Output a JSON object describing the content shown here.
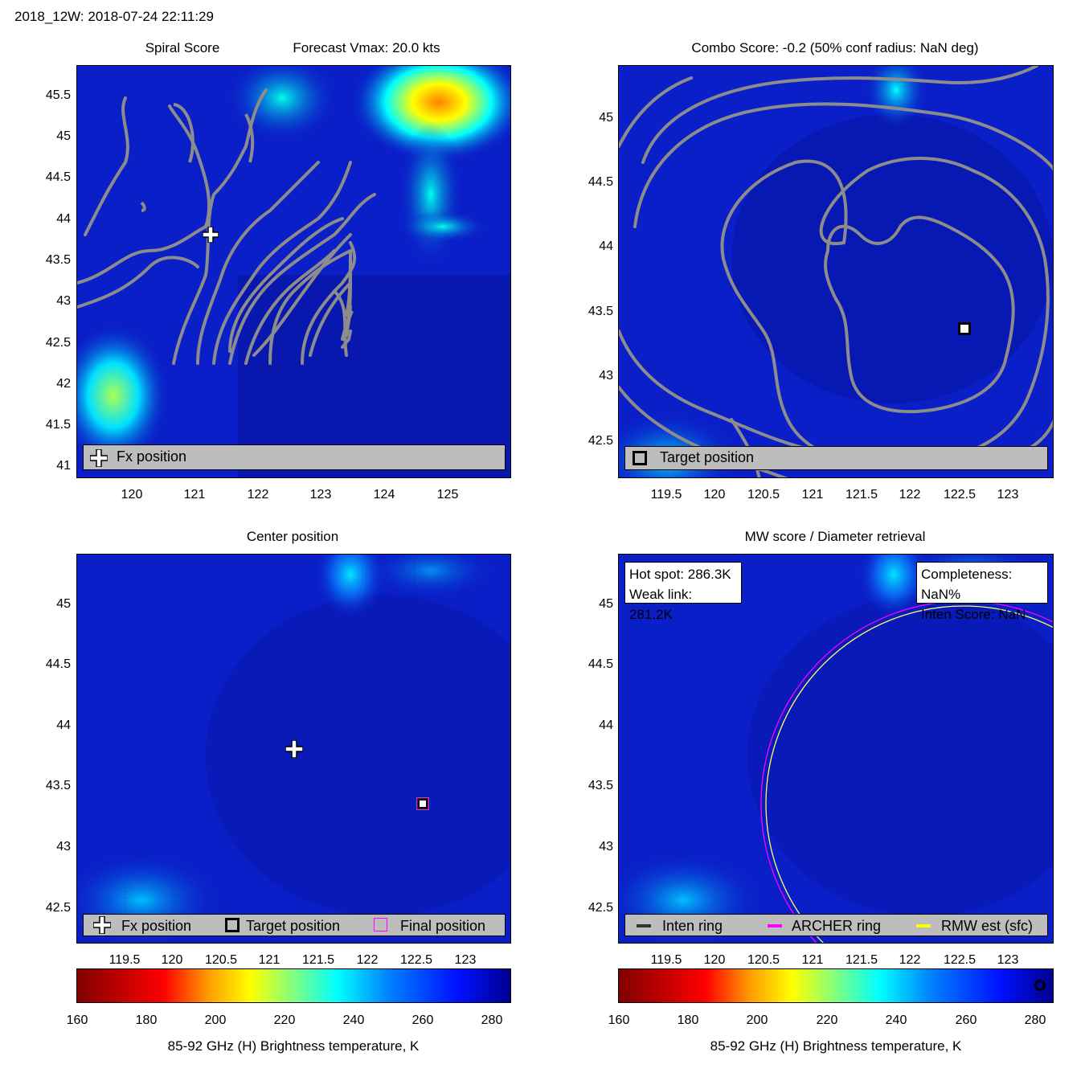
{
  "header": {
    "title": "2018_12W: 2018-07-24 22:11:29"
  },
  "panels": {
    "spiral": {
      "title_left": "Spiral Score",
      "title_right": "Forecast Vmax: 20.0 kts",
      "xticks": [
        "120",
        "121",
        "122",
        "123",
        "124",
        "125"
      ],
      "yticks": [
        "41",
        "41.5",
        "42",
        "42.5",
        "43",
        "43.5",
        "44",
        "44.5",
        "45",
        "45.5"
      ],
      "legend": {
        "fx_label": "Fx position"
      }
    },
    "combo": {
      "title": "Combo Score: -0.2  (50% conf radius: NaN deg)",
      "xticks": [
        "119.5",
        "120",
        "120.5",
        "121",
        "121.5",
        "122",
        "122.5",
        "123"
      ],
      "yticks": [
        "42.5",
        "43",
        "43.5",
        "44",
        "44.5",
        "45"
      ],
      "legend": {
        "target_label": "Target position"
      }
    },
    "center": {
      "title": "Center position",
      "xticks": [
        "119.5",
        "120",
        "120.5",
        "121",
        "121.5",
        "122",
        "122.5",
        "123"
      ],
      "yticks": [
        "42.5",
        "43",
        "43.5",
        "44",
        "44.5",
        "45"
      ],
      "legend": {
        "fx_label": "Fx position",
        "target_label": "Target position",
        "final_label": "Final position"
      }
    },
    "mw": {
      "title": "MW score / Diameter retrieval",
      "xticks": [
        "119.5",
        "120",
        "120.5",
        "121",
        "121.5",
        "122",
        "122.5",
        "123"
      ],
      "yticks": [
        "42.5",
        "43",
        "43.5",
        "44",
        "44.5",
        "45"
      ],
      "info_left": {
        "hot_spot": "Hot spot: 286.3K",
        "weak_link": "Weak link: 281.2K"
      },
      "info_right": {
        "completeness": "Completeness: NaN%",
        "inten_score": "Inten Score: NaN"
      },
      "legend": {
        "inten_label": "Inten ring",
        "archer_label": "ARCHER ring",
        "rmw_label": "RMW est (sfc)"
      }
    }
  },
  "colorbar": {
    "ticks": [
      "160",
      "180",
      "200",
      "220",
      "240",
      "260",
      "280"
    ],
    "label": "85-92 GHz (H) Brightness temperature, K"
  },
  "colors": {
    "background_blue": "#0a1fc8",
    "contour_gray": "#8c8c8c",
    "legend_gray": "#bdbdbd",
    "archer": "#ff00ff",
    "rmw": "#ffff00",
    "final_marker": "#ff00ff"
  },
  "chart_data": [
    {
      "type": "heatmap",
      "title": "Spiral Score",
      "xlim": [
        119.2,
        126.0
      ],
      "ylim": [
        40.9,
        45.85
      ],
      "markers": [
        {
          "name": "Fx position",
          "x": 121.2,
          "y": 43.82
        }
      ]
    },
    {
      "type": "heatmap",
      "title": "Combo Score: -0.2",
      "xlim": [
        119.0,
        123.45
      ],
      "ylim": [
        42.2,
        45.35
      ],
      "markers": [
        {
          "name": "Target position",
          "x": 122.55,
          "y": 43.37
        }
      ]
    },
    {
      "type": "heatmap",
      "title": "Center position",
      "xlim": [
        119.0,
        123.45
      ],
      "ylim": [
        42.2,
        45.4
      ],
      "markers": [
        {
          "name": "Fx position",
          "x": 121.25,
          "y": 43.82
        },
        {
          "name": "Target position",
          "x": 122.55,
          "y": 43.37
        },
        {
          "name": "Final position",
          "x": 122.55,
          "y": 43.37
        }
      ]
    },
    {
      "type": "heatmap",
      "title": "MW score / Diameter retrieval",
      "xlim": [
        119.0,
        123.45
      ],
      "ylim": [
        42.2,
        45.4
      ],
      "rings": [
        {
          "name": "ARCHER ring",
          "cx": 122.55,
          "cy": 43.35,
          "r_deg": 2.07
        },
        {
          "name": "RMW est (sfc)",
          "cx": 122.55,
          "cy": 43.35,
          "r_deg": 2.02
        }
      ]
    }
  ]
}
